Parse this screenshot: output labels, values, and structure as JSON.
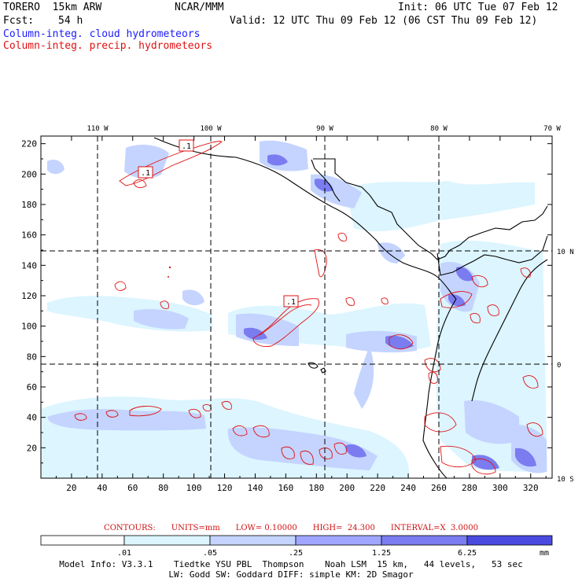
{
  "header": {
    "model": "TORERO  15km ARW",
    "org": "NCAR/MMM",
    "init": "Init: 06 UTC Tue 07 Feb 12",
    "fcst_label": "Fcst:",
    "fcst_value": "54 h",
    "valid": "Valid: 12 UTC Thu 09 Feb 12 (06 CST Thu 09 Feb 12)",
    "legend_cloud": "Column-integ. cloud hydrometeors",
    "legend_precip": "Column-integ. precip. hydrometeors"
  },
  "colors": {
    "cloud_light": "#dcf5ff",
    "cloud_mid": "#c4d4ff",
    "cloud_med": "#a0a6ff",
    "cloud_dark": "#7a7cf0",
    "cloud_darker": "#4a4ae0",
    "cloud_darkest": "#1818ee",
    "contour": "#e01010",
    "coast": "#000000"
  },
  "chart_data": {
    "type": "heatmap",
    "title": "Column-integ. cloud hydrometeors (shaded), Column-integ. precip. hydrometeors (contours)",
    "x_grid_ticks": [
      20,
      40,
      60,
      80,
      100,
      120,
      140,
      160,
      180,
      200,
      220,
      240,
      260,
      280,
      300,
      320
    ],
    "y_grid_ticks": [
      20,
      40,
      60,
      80,
      100,
      120,
      140,
      160,
      180,
      200,
      220
    ],
    "xlim": [
      0,
      334
    ],
    "ylim": [
      0,
      225
    ],
    "lon_labels": [
      "110 W",
      "100 W",
      "90 W",
      "80 W",
      "70 W"
    ],
    "lat_labels": [
      "10 N",
      "0",
      "10 S"
    ],
    "contour_labels": [
      ".1",
      ".1",
      ".1"
    ],
    "contours": {
      "label": "CONTOURS:",
      "units": "UNITS=mm",
      "low": "LOW= 0.10000",
      "high": "HIGH=  24.300",
      "interval": "INTERVAL=X  3.0000"
    },
    "colorbar": {
      "levels": [
        ".01",
        ".05",
        ".25",
        "1.25",
        "6.25"
      ],
      "unit": "mm",
      "colors": [
        "#ffffff",
        "#dcf5ff",
        "#c4d4ff",
        "#a0a6ff",
        "#7a7cf0",
        "#4a4ae0",
        "#1818ee"
      ]
    }
  },
  "footer": {
    "line1": "Model Info: V3.3.1    Tiedtke YSU PBL  Thompson    Noah LSM  15 km,   44 levels,   53 sec",
    "line2": "LW: Godd SW: Goddard DIFF: simple KM: 2D Smagor"
  }
}
